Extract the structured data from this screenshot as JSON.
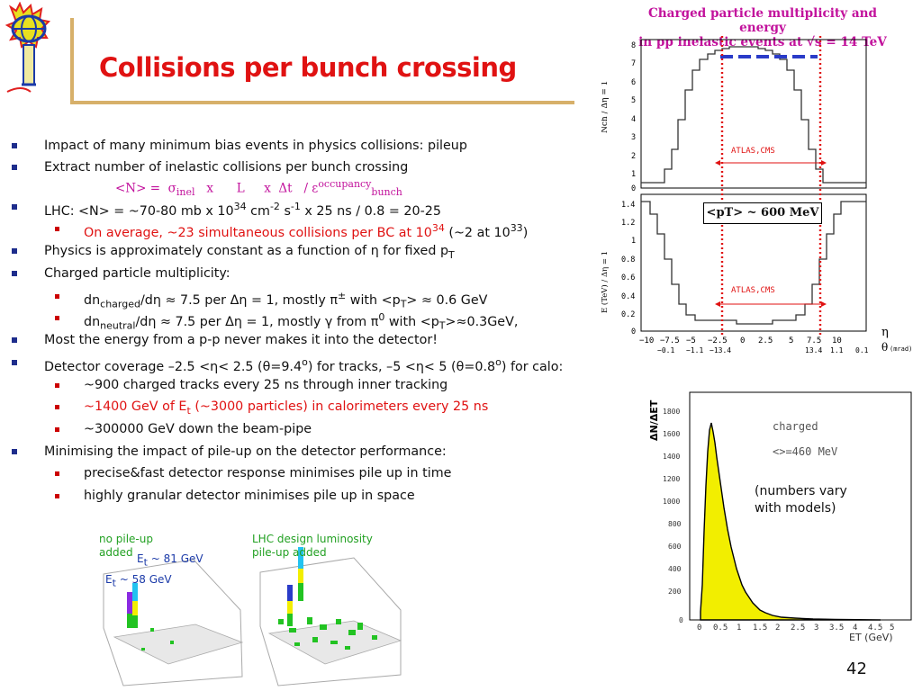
{
  "title": "Collisions per bunch crossing",
  "bullets": {
    "b1": "Impact of many minimum bias events in physics collisions: pileup",
    "b2": "Extract number of inelastic collisions per bunch crossing",
    "formula": {
      "n": "<N>  =",
      "sigma": "σ",
      "sigma_sub": "inel",
      "x1": "x",
      "L": "L",
      "x2": "x",
      "dt": "Δt",
      "slash": "/ ε",
      "eps_sup": "occupancy",
      "eps_sub": "bunch"
    },
    "b3": {
      "text": "LHC: <N> = ~70-80 mb x 10",
      "sup1": "34",
      "cm": " cm",
      "sup2": "-2",
      "s": " s",
      "sup3": "-1",
      "rest": " x 25 ns /  0.8 = 20-25"
    },
    "b3a": {
      "text": "On average, ~23 simultaneous collisions per BC at 10",
      "sup": "34",
      "tail": " (~2 at 10",
      "sup2": "33",
      "close": ")"
    },
    "b4": {
      "text": "Physics is approximately constant as a function of η for fixed p",
      "sub": "T"
    },
    "b5": "Charged particle multiplicity:",
    "b5a": {
      "dn": "dn",
      "sub": "charged",
      "text": "/dη ≈ 7.5 per Δη = 1, mostly π",
      "sup": "±",
      "tail": " with <p",
      "sub2": "T",
      "tail2": "> ≈ 0.6 GeV"
    },
    "b5b": {
      "dn": "dn",
      "sub": "neutral",
      "text": "/dη ≈ 7.5 per Δη = 1, mostly γ from π",
      "sup": "0",
      "tail": " with <p",
      "sub2": "T",
      "tail2": ">≈0.3GeV,"
    },
    "b6": "Most the energy from a p-p never makes it into the detector!",
    "b7": {
      "a": "Detector coverage –2.5 <η< 2.5 (θ=9.4",
      "sup1": "o",
      "b": ") for tracks, –5 <η< 5 (θ=0.8",
      "sup2": "o",
      "c": ") for calo:"
    },
    "b7a": "~900 charged tracks every 25 ns through inner tracking",
    "b7b": {
      "a": "~1400 GeV of E",
      "sub": "t",
      "b": " (~3000 particles) in calorimeters every 25 ns"
    },
    "b7c": "~300000 GeV down the beam-pipe",
    "b8": "Minimising the impact of pile-up on the detector performance:",
    "b8a": "precise&fast detector response minimises pile up in time",
    "b8b": "highly granular detector minimises pile up in space"
  },
  "right_chart": {
    "title_l1": "Charged particle multiplicity and energy",
    "title_l2": "in pp inelastic events at √s = 14 TeV",
    "ylabel_top": "Nch / Δη = 1",
    "ylabel_bottom": "E (TeV) / Δη = 1",
    "box": "<pT> ~ 600 MeV",
    "atlas": "ATLAS,CMS",
    "eta_ticks": [
      "−10",
      "−7.5",
      "−5",
      "−2.5",
      "0",
      "2.5",
      "5",
      "7.5",
      "10"
    ],
    "theta_ticks": [
      "−0.1",
      "−1.1",
      "−13.4",
      "13.4",
      "1.1",
      "0.1"
    ],
    "eta": "η",
    "theta": "θ",
    "mrad": "(mrad)",
    "yticks_top": [
      "8",
      "7",
      "6",
      "5",
      "4",
      "3",
      "2",
      "1",
      "0"
    ],
    "yticks_bottom": [
      "1.4",
      "1.2",
      "1",
      "0.8",
      "0.6",
      "0.4",
      "0.2",
      "0"
    ]
  },
  "dist_chart": {
    "ylabel": "ΔN/ΔET",
    "charged": "charged",
    "mean": "<>=460 MeV",
    "xlabel": "ET (GeV)",
    "yticks": [
      "1800",
      "1600",
      "1400",
      "1200",
      "1000",
      "800",
      "600",
      "400",
      "200",
      "0"
    ],
    "xticks": [
      "0",
      "0.5",
      "1",
      "1.5",
      "2",
      "2.5",
      "3",
      "3.5",
      "4",
      "4.5",
      "5"
    ],
    "note": "(numbers vary with models)"
  },
  "lego": {
    "left_label": "no pile-up added",
    "right_label": "LHC design luminosity pile-up added",
    "et81": "E",
    "et81_sub": "t",
    "et81_v": " ~ 81 GeV",
    "et58": "E",
    "et58_sub": "t",
    "et58_v": " ~ 58 GeV"
  },
  "page": "42",
  "colors": {
    "title": "#e01212",
    "bullet": "#1e2d8c",
    "formula": "#c2129c",
    "yellow": "#f2ee00",
    "green": "#22c322"
  }
}
